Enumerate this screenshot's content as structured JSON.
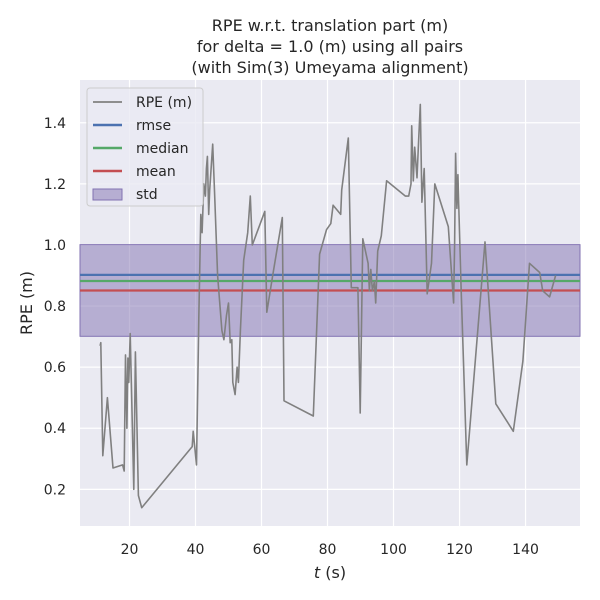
{
  "chart_data": {
    "type": "line",
    "title_lines": [
      "RPE w.r.t. translation part (m)",
      "for delta = 1.0 (m) using all pairs",
      "(with Sim(3) Umeyama alignment)"
    ],
    "xlabel_var": "t",
    "xlabel_unit": " (s)",
    "ylabel": "RPE (m)",
    "xlim": [
      5,
      156.5
    ],
    "ylim": [
      0.08,
      1.54
    ],
    "xticks": [
      20,
      40,
      60,
      80,
      100,
      120,
      140
    ],
    "yticks": [
      0.2,
      0.4,
      0.6,
      0.8,
      1.0,
      1.2,
      1.4
    ],
    "grid": true,
    "legend_position": "top-left",
    "stats": {
      "rmse": 0.902,
      "median": 0.882,
      "mean": 0.851,
      "std": 0.15
    },
    "colors": {
      "rpe": "#808080",
      "rmse": "#4c72b0",
      "median": "#55a868",
      "mean": "#c44e52",
      "std_fill": "#8172b2",
      "background": "#eaeaf2",
      "grid": "#ffffff"
    },
    "legend": [
      {
        "key": "rpe",
        "label": "RPE (m)",
        "kind": "line"
      },
      {
        "key": "rmse",
        "label": "rmse",
        "kind": "line"
      },
      {
        "key": "median",
        "label": "median",
        "kind": "line"
      },
      {
        "key": "mean",
        "label": "mean",
        "kind": "line"
      },
      {
        "key": "std_fill",
        "label": "std",
        "kind": "patch"
      }
    ],
    "series": [
      {
        "name": "RPE (m)",
        "x": [
          11.1,
          11.3,
          11.9,
          13.3,
          15.0,
          17.9,
          18.4,
          18.8,
          19.2,
          19.5,
          19.8,
          20.2,
          21.3,
          21.8,
          22.7,
          23.7,
          39.0,
          39.3,
          40.3,
          41.0,
          41.6,
          42.0,
          42.5,
          43.0,
          43.3,
          43.6,
          44.0,
          44.3,
          45.2,
          45.8,
          46.7,
          48.0,
          48.6,
          49.4,
          50.0,
          50.5,
          51.0,
          51.3,
          52.0,
          52.6,
          53.0,
          53.6,
          54.6,
          55.8,
          56.6,
          57.2,
          61.0,
          61.6,
          63.4,
          66.3,
          66.8,
          75.7,
          77.6,
          79.7,
          81.0,
          81.7,
          84.0,
          84.3,
          86.3,
          87.2,
          87.9,
          89.2,
          89.9,
          90.7,
          92.3,
          92.7,
          93.1,
          93.6,
          94.2,
          94.6,
          95.2,
          96.3,
          97.9,
          103.6,
          104.6,
          105.3,
          105.5,
          106.0,
          106.4,
          107.1,
          107.6,
          108.1,
          108.6,
          109.3,
          110.2,
          111.5,
          112.5,
          116.6,
          118.2,
          118.5,
          118.8,
          119.2,
          119.5,
          120.4,
          122.2,
          127.7,
          131.0,
          136.3,
          139.2,
          141.2,
          144.3,
          145.2,
          147.3,
          149.1
        ],
        "y": [
          0.67,
          0.68,
          0.31,
          0.5,
          0.27,
          0.28,
          0.26,
          0.64,
          0.4,
          0.63,
          0.55,
          0.71,
          0.2,
          0.65,
          0.18,
          0.14,
          0.34,
          0.39,
          0.28,
          0.76,
          1.1,
          1.04,
          1.2,
          1.16,
          1.25,
          1.29,
          1.1,
          1.18,
          1.33,
          1.16,
          0.9,
          0.72,
          0.69,
          0.77,
          0.81,
          0.68,
          0.69,
          0.55,
          0.51,
          0.6,
          0.55,
          0.72,
          0.95,
          1.04,
          1.16,
          1.0,
          1.11,
          0.78,
          0.9,
          1.09,
          0.49,
          0.44,
          0.97,
          1.05,
          1.07,
          1.13,
          1.1,
          1.18,
          1.35,
          0.86,
          0.86,
          0.86,
          0.45,
          1.02,
          0.94,
          0.85,
          0.92,
          0.85,
          0.88,
          0.81,
          0.98,
          1.03,
          1.21,
          1.16,
          1.16,
          1.2,
          1.39,
          1.21,
          1.32,
          1.22,
          1.34,
          1.46,
          1.14,
          1.25,
          0.84,
          0.94,
          1.2,
          1.06,
          0.81,
          1.0,
          1.3,
          1.12,
          1.23,
          0.88,
          0.28,
          1.01,
          0.48,
          0.39,
          0.62,
          0.94,
          0.91,
          0.85,
          0.83,
          0.9
        ]
      }
    ]
  }
}
